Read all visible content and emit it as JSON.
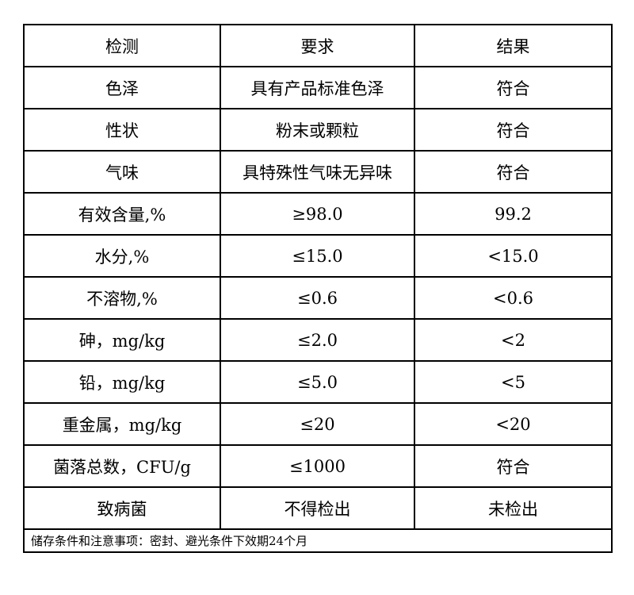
{
  "header": [
    "检测",
    "要求",
    "结果"
  ],
  "rows": [
    [
      "色泽",
      "具有产品标准色泽",
      "符合"
    ],
    [
      "性状",
      "粉末或颗粒",
      "符合"
    ],
    [
      "气味",
      "具特殊性气味无异味",
      "符合"
    ],
    [
      "有效含量,%",
      "≥98.0",
      "99.2"
    ],
    [
      "水分,%",
      "≤15.0",
      "<15.0"
    ],
    [
      "不溶物,%",
      "≤0.6",
      "<0.6"
    ],
    [
      "砷，mg/kg",
      "≤2.0",
      "<2"
    ],
    [
      "铅，mg/kg",
      "≤5.0",
      "<5"
    ],
    [
      "重金属，mg/kg",
      "≤20",
      "<20"
    ],
    [
      "菌落总数，CFU/g",
      "≤1000",
      "符合"
    ],
    [
      "致病菌",
      "不得检出",
      "未检出"
    ]
  ],
  "footer": "储存条件和注意事项：密封、避光条件下效期24个月"
}
